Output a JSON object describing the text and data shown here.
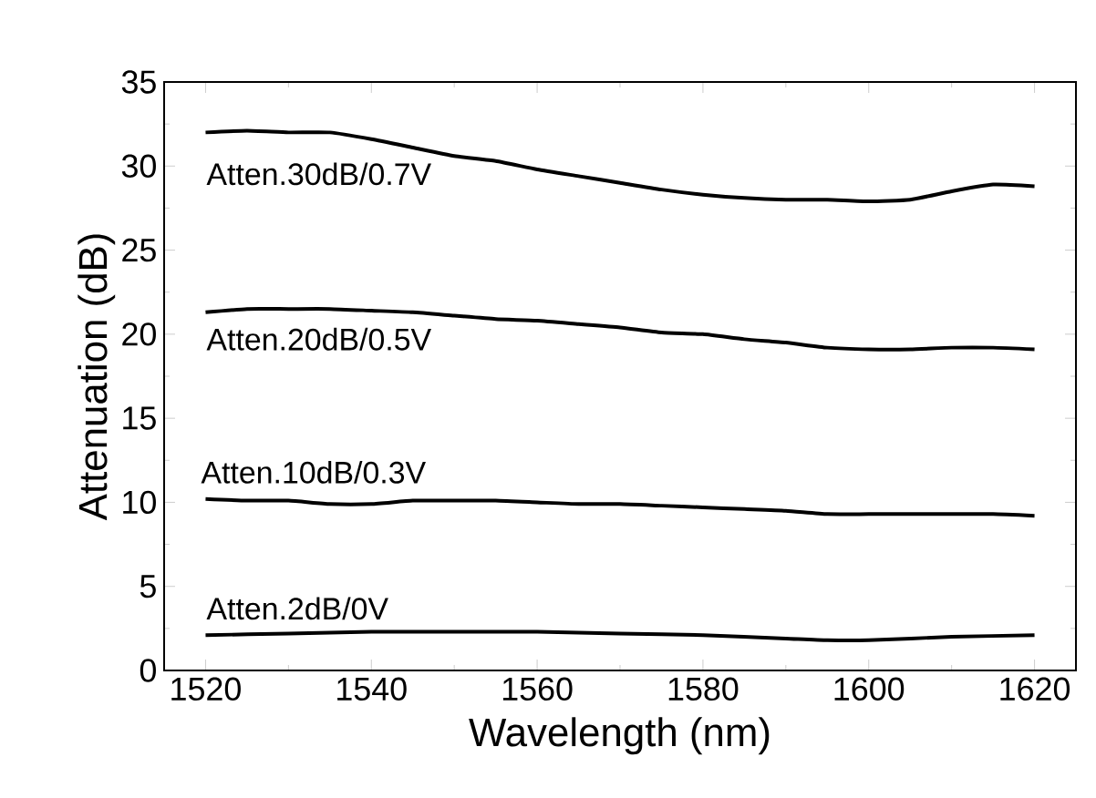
{
  "chart_data": {
    "type": "line",
    "xlabel": "Wavelength (nm)",
    "ylabel": "Attenuation (dB)",
    "xlim": [
      1515,
      1625
    ],
    "ylim": [
      0,
      35
    ],
    "xticks": [
      1520,
      1540,
      1560,
      1580,
      1600,
      1620
    ],
    "yticks": [
      0,
      5,
      10,
      15,
      20,
      25,
      30,
      35
    ],
    "grid": false,
    "legend": false,
    "marker": "none",
    "line_style": "solid",
    "series": [
      {
        "name": "Atten.30dB/0.7V",
        "color": "#000000",
        "x": [
          1520,
          1525,
          1530,
          1535,
          1540,
          1545,
          1550,
          1555,
          1560,
          1565,
          1570,
          1575,
          1580,
          1585,
          1590,
          1595,
          1600,
          1605,
          1610,
          1615,
          1620
        ],
        "values": [
          32.0,
          32.1,
          32.0,
          32.0,
          31.6,
          31.1,
          30.6,
          30.3,
          29.8,
          29.4,
          29.0,
          28.6,
          28.3,
          28.1,
          28.0,
          28.0,
          27.9,
          28.0,
          28.5,
          28.9,
          28.8
        ]
      },
      {
        "name": "Atten.20dB/0.5V",
        "color": "#000000",
        "x": [
          1520,
          1525,
          1530,
          1535,
          1540,
          1545,
          1550,
          1555,
          1560,
          1565,
          1570,
          1575,
          1580,
          1585,
          1590,
          1595,
          1600,
          1605,
          1610,
          1615,
          1620
        ],
        "values": [
          21.3,
          21.5,
          21.5,
          21.5,
          21.4,
          21.3,
          21.1,
          20.9,
          20.8,
          20.6,
          20.4,
          20.1,
          20.0,
          19.7,
          19.5,
          19.2,
          19.1,
          19.1,
          19.2,
          19.2,
          19.1
        ]
      },
      {
        "name": "Atten.10dB/0.3V",
        "color": "#000000",
        "x": [
          1520,
          1525,
          1530,
          1535,
          1540,
          1545,
          1550,
          1555,
          1560,
          1565,
          1570,
          1575,
          1580,
          1585,
          1590,
          1595,
          1600,
          1605,
          1610,
          1615,
          1620
        ],
        "values": [
          10.2,
          10.1,
          10.1,
          9.9,
          9.9,
          10.1,
          10.1,
          10.1,
          10.0,
          9.9,
          9.9,
          9.8,
          9.7,
          9.6,
          9.5,
          9.3,
          9.3,
          9.3,
          9.3,
          9.3,
          9.2
        ]
      },
      {
        "name": "Atten.2dB/0V",
        "color": "#000000",
        "x": [
          1520,
          1530,
          1540,
          1550,
          1560,
          1570,
          1580,
          1590,
          1595,
          1600,
          1610,
          1620
        ],
        "values": [
          2.1,
          2.2,
          2.3,
          2.3,
          2.3,
          2.2,
          2.1,
          1.9,
          1.8,
          1.8,
          2.0,
          2.1
        ]
      }
    ]
  }
}
